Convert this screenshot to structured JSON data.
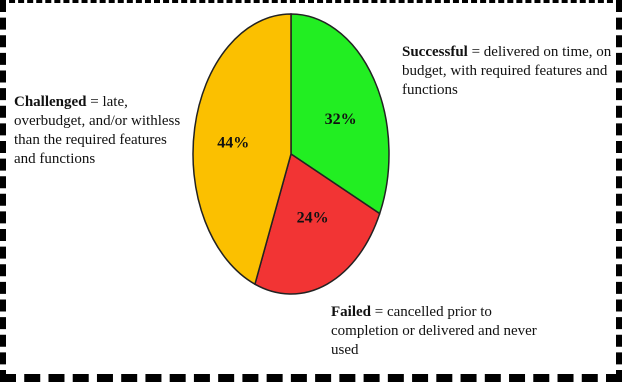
{
  "chart_data": {
    "type": "pie",
    "slices": [
      {
        "key": "successful",
        "value": 32,
        "label": "32%",
        "color": "#22ee22",
        "name": "Successful",
        "description": " = delivered on time, on budget, with required features and functions"
      },
      {
        "key": "failed",
        "value": 24,
        "label": "24%",
        "color": "#f23434",
        "name": "Failed",
        "description": " = cancelled prior to completion or delivered and never used"
      },
      {
        "key": "challenged",
        "value": 44,
        "label": "44%",
        "color": "#fbc000",
        "name": "Challenged",
        "description": " = late, overbudget, and/or withless than the required features and functions"
      }
    ]
  }
}
